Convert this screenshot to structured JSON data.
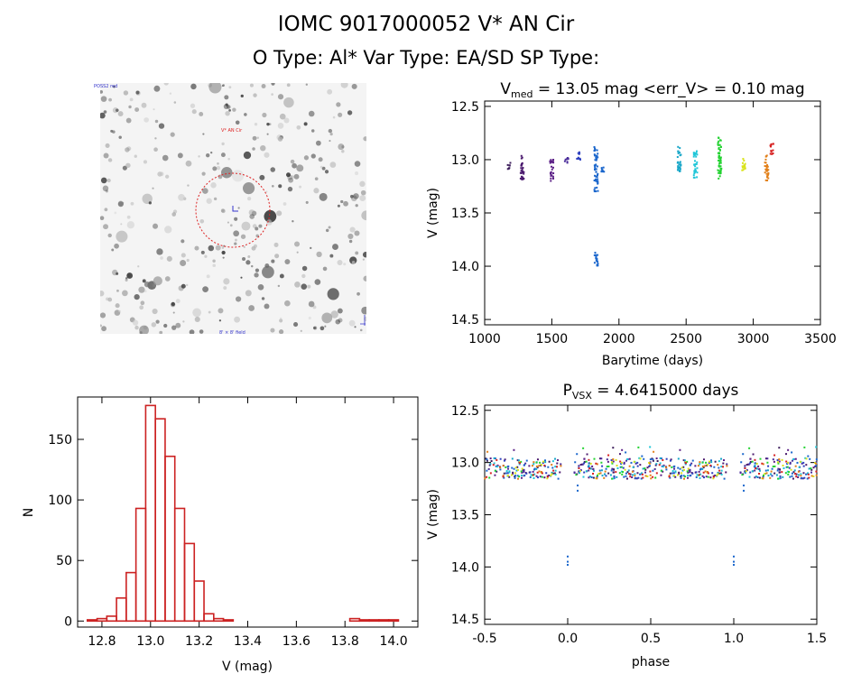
{
  "header": {
    "line1": "IOMC 9017000052    V* AN Cir",
    "line2": "O Type: Al*  Var Type: EA/SD  SP Type:"
  },
  "sky_image": {
    "top_left_label": "POSS2 red",
    "marker_label": "V* AN Cir",
    "bottom_center_label": "8' × 8' field"
  },
  "chart_data": [
    {
      "id": "lightcurve",
      "type": "scatter",
      "title": {
        "main": "V",
        "sub": "med",
        "rest": " = 13.05 mag <err_V> = 0.10 mag"
      },
      "xlabel": "Barytime (days)",
      "ylabel": "V (mag)",
      "xlim": [
        1000,
        3500
      ],
      "ylim": [
        14.55,
        12.45
      ],
      "xticks": [
        1000,
        1500,
        2000,
        2500,
        3000,
        3500
      ],
      "yticks": [
        12.5,
        13.0,
        13.5,
        14.0,
        14.5
      ],
      "y_inverted": true,
      "point_colors": "rainbow by time",
      "groups": [
        {
          "x": 1180,
          "y_min": 13.03,
          "y_max": 13.1,
          "color": "#3b1c5a"
        },
        {
          "x": 1280,
          "y_min": 12.95,
          "y_max": 13.2,
          "color": "#4b1a6e"
        },
        {
          "x": 1500,
          "y_min": 13.0,
          "y_max": 13.2,
          "color": "#5b1f86"
        },
        {
          "x": 1610,
          "y_min": 12.98,
          "y_max": 13.05,
          "color": "#4a2c9a"
        },
        {
          "x": 1700,
          "y_min": 12.92,
          "y_max": 13.0,
          "color": "#2d3fbf"
        },
        {
          "x": 1830,
          "y_min": 12.88,
          "y_max": 13.3,
          "color": "#1a66cc"
        },
        {
          "x": 1830,
          "y_min": 13.84,
          "y_max": 14.0,
          "color": "#1a66cc"
        },
        {
          "x": 1880,
          "y_min": 13.05,
          "y_max": 13.12,
          "color": "#1a66cc"
        },
        {
          "x": 2450,
          "y_min": 12.88,
          "y_max": 13.12,
          "color": "#17a6c8"
        },
        {
          "x": 2570,
          "y_min": 12.92,
          "y_max": 13.18,
          "color": "#20c6d8"
        },
        {
          "x": 2750,
          "y_min": 12.78,
          "y_max": 13.18,
          "color": "#22d230"
        },
        {
          "x": 2930,
          "y_min": 12.98,
          "y_max": 13.1,
          "color": "#d9e31a"
        },
        {
          "x": 3100,
          "y_min": 12.95,
          "y_max": 13.2,
          "color": "#e2801a"
        },
        {
          "x": 3140,
          "y_min": 12.85,
          "y_max": 12.95,
          "color": "#d62020"
        }
      ]
    },
    {
      "id": "phased",
      "type": "scatter",
      "title": {
        "main": "P",
        "sub": "VSX",
        "rest": " = 4.6415000 days"
      },
      "xlabel": "phase",
      "ylabel": "V (mag)",
      "xlim": [
        -0.5,
        1.5
      ],
      "ylim": [
        14.55,
        12.45
      ],
      "xticks": [
        -0.5,
        0.0,
        0.5,
        1.0,
        1.5
      ],
      "yticks": [
        12.5,
        13.0,
        13.5,
        14.0,
        14.5
      ],
      "y_inverted": true,
      "period_days": 4.6415,
      "eclipse_points": [
        {
          "phase": 0.0,
          "V": 13.9,
          "color": "#1a66cc"
        },
        {
          "phase": 0.0,
          "V": 13.95,
          "color": "#1a66cc"
        },
        {
          "phase": 0.0,
          "V": 13.98,
          "color": "#1a66cc"
        },
        {
          "phase": 0.06,
          "V": 13.22,
          "color": "#1a66cc"
        },
        {
          "phase": 0.06,
          "V": 13.27,
          "color": "#1a66cc"
        }
      ]
    },
    {
      "id": "histogram",
      "type": "bar",
      "xlabel": "V (mag)",
      "ylabel": "N",
      "xlim": [
        12.7,
        14.1
      ],
      "ylim": [
        -5,
        185
      ],
      "xticks": [
        12.8,
        13.0,
        13.2,
        13.4,
        13.6,
        13.8,
        14.0
      ],
      "yticks": [
        0,
        50,
        100,
        150
      ],
      "bin_width": 0.04,
      "bars_color": "#cc2222",
      "bins": [
        [
          12.74,
          1
        ],
        [
          12.78,
          2
        ],
        [
          12.82,
          4
        ],
        [
          12.86,
          19
        ],
        [
          12.9,
          40
        ],
        [
          12.94,
          93
        ],
        [
          12.98,
          178
        ],
        [
          13.02,
          167
        ],
        [
          13.06,
          136
        ],
        [
          13.1,
          93
        ],
        [
          13.14,
          64
        ],
        [
          13.18,
          33
        ],
        [
          13.22,
          6
        ],
        [
          13.26,
          2
        ],
        [
          13.3,
          1
        ],
        [
          13.82,
          2
        ],
        [
          13.86,
          1
        ],
        [
          13.9,
          1
        ],
        [
          13.94,
          1
        ],
        [
          13.98,
          1
        ]
      ]
    }
  ]
}
